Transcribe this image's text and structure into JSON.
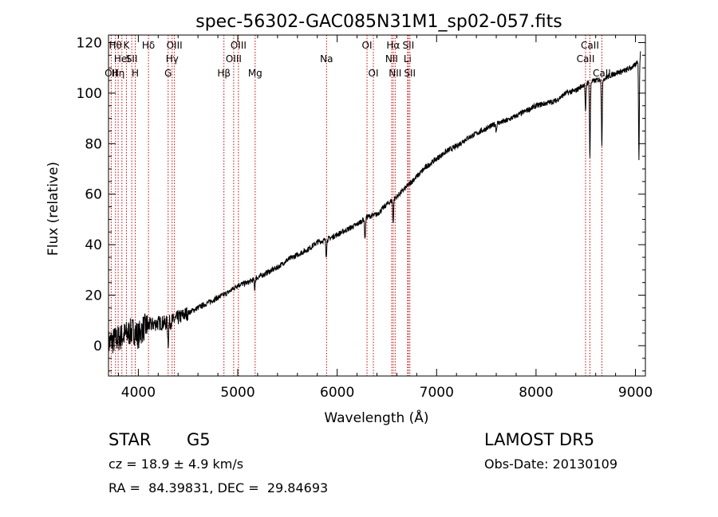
{
  "chart_data": {
    "type": "line",
    "title": "spec-56302-GAC085N31M1_sp02-057.fits",
    "xlabel": "Wavelength (Å)",
    "ylabel": "Flux (relative)",
    "xlim": [
      3700,
      9100
    ],
    "ylim": [
      -12,
      123
    ],
    "x_ticks": [
      4000,
      5000,
      6000,
      7000,
      8000,
      9000
    ],
    "y_ticks": [
      0,
      20,
      40,
      60,
      80,
      100,
      120
    ],
    "grid": false,
    "colors": {
      "spectrum": "#000000",
      "lines": "#cc0000"
    },
    "series": [
      {
        "x": [
          3700,
          3750,
          3800,
          3850,
          3900,
          3950,
          4000,
          4050,
          4100,
          4200,
          4300,
          4400,
          4500,
          4600,
          4700,
          4800,
          4900,
          5000,
          5100,
          5200,
          5300,
          5400,
          5500,
          5600,
          5700,
          5800,
          5900,
          6000,
          6100,
          6200,
          6300,
          6400,
          6500,
          6600,
          6700,
          6800,
          6900,
          7000,
          7100,
          7200,
          7300,
          7400,
          7500,
          7600,
          7700,
          7800,
          7900,
          8000,
          8100,
          8200,
          8300,
          8400,
          8500,
          8600,
          8700,
          8800,
          8900,
          9000,
          9050
        ],
        "y": [
          1,
          2,
          3,
          4,
          5,
          6,
          4,
          7,
          8,
          9,
          9,
          11,
          13,
          15,
          17,
          19,
          21,
          24,
          25,
          27,
          29,
          31,
          34,
          36,
          38,
          41,
          42,
          44,
          46,
          48,
          51,
          52,
          56,
          59,
          63,
          67,
          71,
          74,
          77,
          79,
          82,
          84,
          86,
          88,
          89,
          91,
          93,
          95,
          96,
          97,
          100,
          101,
          104,
          105,
          106,
          108,
          109,
          111,
          116
        ]
      }
    ],
    "absorption_dips": [
      {
        "x": 4300,
        "depth": 8
      },
      {
        "x": 5170,
        "depth": 4
      },
      {
        "x": 5890,
        "depth": 6
      },
      {
        "x": 6280,
        "depth": 8
      },
      {
        "x": 6563,
        "depth": 9
      },
      {
        "x": 7600,
        "depth": 3
      },
      {
        "x": 8498,
        "depth": 12
      },
      {
        "x": 8542,
        "depth": 30
      },
      {
        "x": 8662,
        "depth": 26
      },
      {
        "x": 9035,
        "depth": 40
      }
    ],
    "line_markers": [
      {
        "x": 3727,
        "label": "OII",
        "row": 2
      },
      {
        "x": 3770,
        "label": "Hθ",
        "row": 0
      },
      {
        "x": 3797,
        "label": "Hη",
        "row": 2
      },
      {
        "x": 3835,
        "label": "HeI",
        "row": 1
      },
      {
        "x": 3880,
        "label": "K",
        "row": 0
      },
      {
        "x": 3934,
        "label": "SII",
        "row": 1
      },
      {
        "x": 3969,
        "label": "H",
        "row": 2
      },
      {
        "x": 4102,
        "label": "Hδ",
        "row": 0
      },
      {
        "x": 4300,
        "label": "G",
        "row": 2
      },
      {
        "x": 4340,
        "label": "Hγ",
        "row": 1
      },
      {
        "x": 4363,
        "label": "OIII",
        "row": 0
      },
      {
        "x": 4861,
        "label": "Hβ",
        "row": 2
      },
      {
        "x": 4959,
        "label": "OIII",
        "row": 1
      },
      {
        "x": 5007,
        "label": "OIII",
        "row": 0
      },
      {
        "x": 5175,
        "label": "Mg",
        "row": 2
      },
      {
        "x": 5893,
        "label": "Na",
        "row": 1
      },
      {
        "x": 6300,
        "label": "OI",
        "row": 0
      },
      {
        "x": 6364,
        "label": "OI",
        "row": 2
      },
      {
        "x": 6548,
        "label": "NII",
        "row": 1
      },
      {
        "x": 6563,
        "label": "Hα",
        "row": 0
      },
      {
        "x": 6583,
        "label": "NII",
        "row": 2
      },
      {
        "x": 6708,
        "label": "Li",
        "row": 1
      },
      {
        "x": 6716,
        "label": "SII",
        "row": 0
      },
      {
        "x": 6731,
        "label": "SII",
        "row": 2
      },
      {
        "x": 8498,
        "label": "CaII",
        "row": 1
      },
      {
        "x": 8542,
        "label": "CaII",
        "row": 0
      },
      {
        "x": 8662,
        "label": "CaII",
        "row": 2
      }
    ]
  },
  "footer": {
    "class_label": "STAR",
    "subclass": "G5",
    "redshift": "cz = 18.9 ± 4.9 km/s",
    "coords": "RA =  84.39831, DEC =  29.84693",
    "survey": "LAMOST DR5",
    "obs_date": "Obs-Date: 20130109"
  }
}
